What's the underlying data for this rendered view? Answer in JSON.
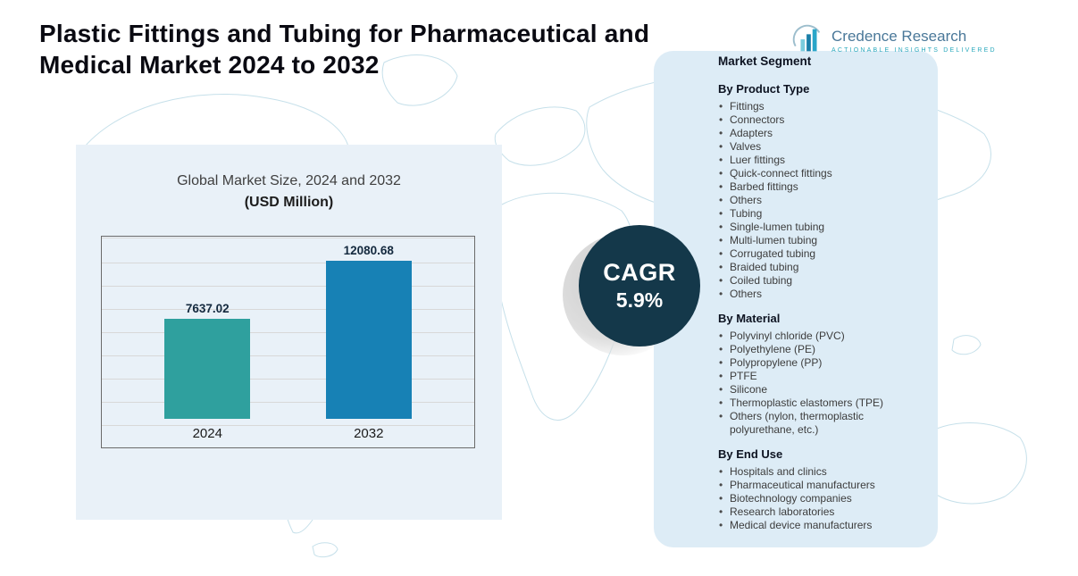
{
  "header": {
    "title": "Plastic Fittings and Tubing for Pharmaceutical and Medical Market 2024 to 2032"
  },
  "logo": {
    "name": "Credence Research",
    "tagline": "Actionable Insights Delivered"
  },
  "chart_data": {
    "type": "bar",
    "title": "Global Market Size, 2024 and 2032",
    "subtitle": "(USD Million)",
    "categories": [
      "2024",
      "2032"
    ],
    "values": [
      7637.02,
      12080.68
    ],
    "value_labels": [
      "7637.02",
      "12080.68"
    ],
    "bar_colors": [
      "#2fa09e",
      "#1781b5"
    ],
    "xlabel": "",
    "ylabel": "USD Million",
    "ylim": [
      0,
      13000
    ],
    "grid": true,
    "legend": false
  },
  "cagr": {
    "label": "CAGR",
    "value": "5.9%"
  },
  "segments": {
    "title": "Market Segment",
    "groups": [
      {
        "heading": "By Product Type",
        "items": [
          "Fittings",
          "Connectors",
          "Adapters",
          "Valves",
          "Luer fittings",
          "Quick-connect fittings",
          "Barbed fittings",
          "Others",
          "Tubing",
          "Single-lumen tubing",
          "Multi-lumen tubing",
          "Corrugated tubing",
          "Braided tubing",
          "Coiled tubing",
          "Others"
        ]
      },
      {
        "heading": "By Material",
        "items": [
          "Polyvinyl chloride (PVC)",
          "Polyethylene (PE)",
          "Polypropylene (PP)",
          "PTFE",
          "Silicone",
          "Thermoplastic elastomers (TPE)",
          "Others (nylon, thermoplastic polyurethane, etc.)"
        ]
      },
      {
        "heading": "By End Use",
        "items": [
          "Hospitals and clinics",
          "Pharmaceutical manufacturers",
          "Biotechnology companies",
          "Research laboratories",
          "Medical device manufacturers"
        ]
      }
    ]
  },
  "colors": {
    "accent_teal": "#2fa09e",
    "accent_blue": "#1781b5",
    "cagr_circle": "#14384a",
    "chart_panel_bg": "#e9f1f8",
    "segment_panel_bg": "#ddecf6"
  }
}
